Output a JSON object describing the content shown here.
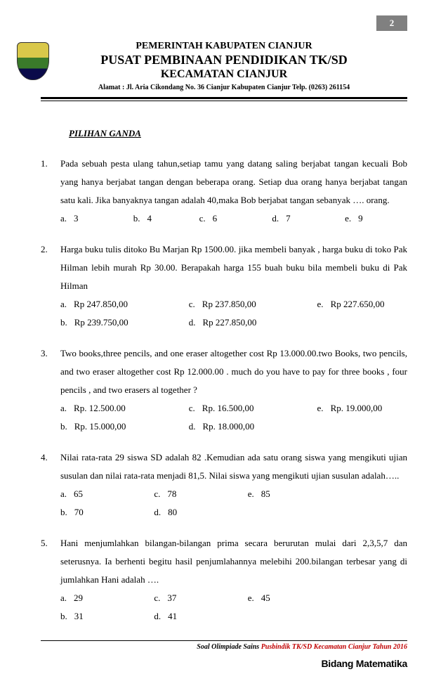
{
  "page_number": "2",
  "header": {
    "line1": "PEMERINTAH KABUPATEN CIANJUR",
    "line2": "PUSAT PEMBINAAN PENDIDIKAN TK/SD",
    "line3": "KECAMATAN CIANJUR",
    "address": "Alamat : Jl. Aria Cikondang No. 36 Cianjur Kabupaten Cianjur Telp. (0263) 261154"
  },
  "section_title": "PILIHAN GANDA",
  "questions": [
    {
      "num": "1.",
      "text": "Pada sebuah pesta ulang tahun,setiap tamu yang datang saling berjabat tangan kecuali Bob yang hanya berjabat tangan dengan beberapa orang. Setiap dua orang hanya berjabat tangan satu kali. Jika banyaknya tangan adalah 40,maka Bob berjabat tangan sebanyak …. orang.",
      "layout": "five_inline",
      "options": [
        {
          "label": "a.",
          "val": "3"
        },
        {
          "label": "b.",
          "val": "4"
        },
        {
          "label": "c.",
          "val": "6"
        },
        {
          "label": "d.",
          "val": "7"
        },
        {
          "label": "e.",
          "val": "9"
        }
      ]
    },
    {
      "num": "2.",
      "text": "Harga buku tulis ditoko Bu Marjan  Rp 1500.00. jika membeli banyak , harga buku di toko Pak Hilman lebih murah Rp 30.00. Berapakah harga 155 buah buku bila membeli buku di Pak Hilman",
      "layout": "three_col_two_row",
      "options": [
        {
          "label": "a.",
          "val": "Rp 247.850,00"
        },
        {
          "label": "c.",
          "val": "Rp 237.850,00"
        },
        {
          "label": "e.",
          "val": "Rp 227.650,00"
        },
        {
          "label": "b.",
          "val": "Rp 239.750,00"
        },
        {
          "label": "d.",
          "val": "Rp 227.850,00"
        }
      ]
    },
    {
      "num": "3.",
      "text": "Two books,three pencils, and one eraser altogether cost Rp 13.000.00.two Books, two pencils, and two eraser altogether cost Rp 12.000.00 . much  do  you have to pay for three books , four pencils , and two erasers  al together ?",
      "layout": "three_col_two_row",
      "options": [
        {
          "label": "a.",
          "val": "Rp. 12.500.00"
        },
        {
          "label": "c.",
          "val": "Rp. 16.500,00"
        },
        {
          "label": "e.",
          "val": "Rp. 19.000,00"
        },
        {
          "label": "b.",
          "val": "Rp. 15.000,00"
        },
        {
          "label": "d.",
          "val": "Rp. 18.000,00"
        }
      ]
    },
    {
      "num": "4.",
      "text": "Nilai rata-rata 29 siswa SD adalah 82 .Kemudian ada satu orang siswa yang mengikuti ujian susulan dan nilai rata-rata menjadi 81,5. Nilai siswa yang mengikuti ujian susulan  adalah…..",
      "layout": "three_col_two_row_short",
      "options": [
        {
          "label": "a.",
          "val": "65"
        },
        {
          "label": "c.",
          "val": "78"
        },
        {
          "label": "e.",
          "val": "85"
        },
        {
          "label": "b.",
          "val": "70"
        },
        {
          "label": "d.",
          "val": "80"
        }
      ]
    },
    {
      "num": "5.",
      "text": "Hani menjumlahkan  bilangan-bilangan prima secara berurutan mulai dari 2,3,5,7 dan seterusnya. Ia berhenti begitu hasil penjumlahannya melebihi 200.bilangan terbesar yang di jumlahkan Hani adalah ….",
      "layout": "three_col_two_row_short",
      "options": [
        {
          "label": "a.",
          "val": "29"
        },
        {
          "label": "c.",
          "val": "37"
        },
        {
          "label": "e.",
          "val": "45"
        },
        {
          "label": "b.",
          "val": "31"
        },
        {
          "label": "d.",
          "val": "41"
        }
      ]
    }
  ],
  "footer": {
    "caption_black": "Soal Olimpiade Sains ",
    "caption_red": "Pusbindik TK/SD Kecamatan Cianjur Tahun 2016",
    "subject": "Bidang Matematika"
  }
}
